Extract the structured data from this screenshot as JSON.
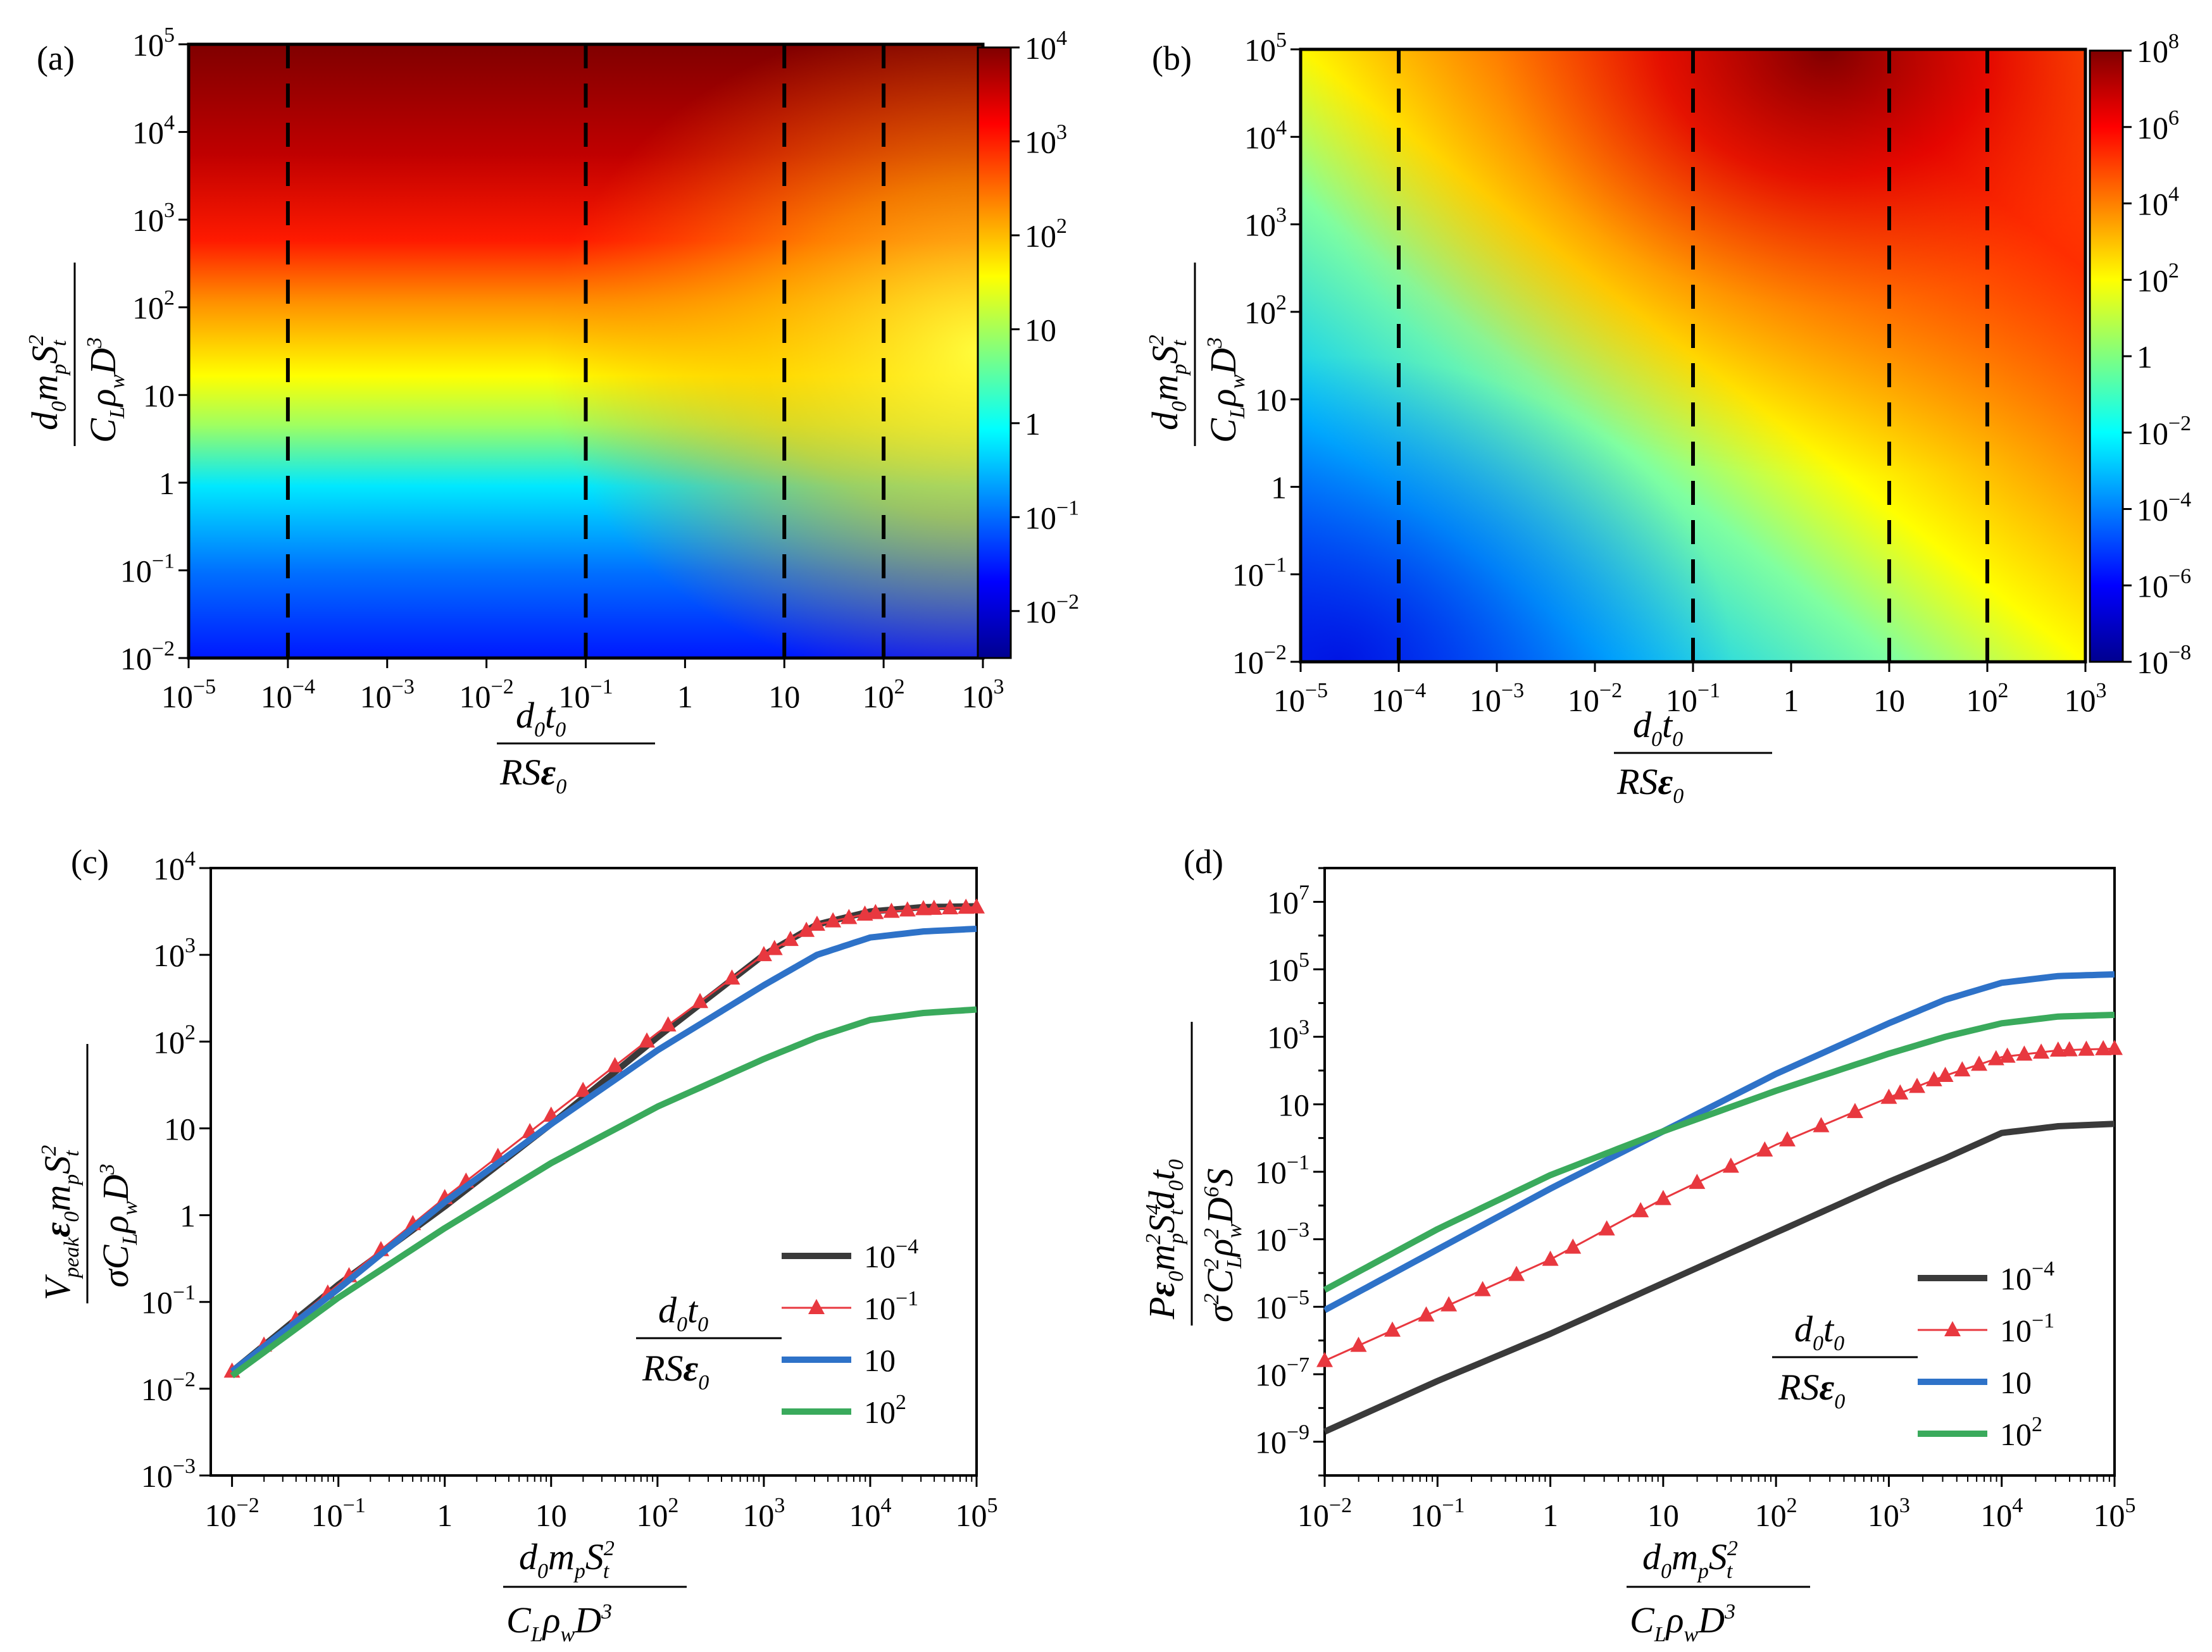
{
  "chart_data": [
    {
      "panel": "(a)",
      "type": "heatmap",
      "xlabel": "d0t0 / RSε0",
      "ylabel": "d0 mp St^2 / CL ρw D^3",
      "x_log_range": [
        -5,
        3
      ],
      "y_log_range": [
        -2,
        5
      ],
      "colorbar_log_range": [
        -2.5,
        4
      ],
      "colorbar_ticks": [
        "10^-2",
        "10^-1",
        "1",
        "10",
        "10^2",
        "10^3",
        "10^4"
      ],
      "dashed_lines_x": [
        "10^-4",
        "10^-1",
        "10",
        "10^2"
      ],
      "colormap": "jet"
    },
    {
      "panel": "(b)",
      "type": "heatmap",
      "xlabel": "d0t0 / RSε0",
      "ylabel": "d0 mp St^2 / CL ρw D^3",
      "x_log_range": [
        -5,
        3
      ],
      "y_log_range": [
        -2,
        5
      ],
      "colorbar_log_range": [
        -8,
        8
      ],
      "colorbar_ticks": [
        "10^-8",
        "10^-6",
        "10^-4",
        "10^-2",
        "1",
        "10^2",
        "10^4",
        "10^6",
        "10^8"
      ],
      "dashed_lines_x": [
        "10^-4",
        "10^-1",
        "10",
        "10^2"
      ],
      "colormap": "jet"
    },
    {
      "panel": "(c)",
      "type": "line",
      "xlabel": "d0 mp St^2 / CL ρw D^3",
      "ylabel": "Vpeak ε0 mp St^2 / σ CL ρw D^3",
      "x_log_range": [
        -2.2,
        5
      ],
      "y_log_range": [
        -3,
        4
      ],
      "legend_title": "d0t0 / RSε0",
      "legend_position": "bottom-right",
      "series": [
        {
          "name": "10^-4",
          "color": "#3a3a3a",
          "log_x": [
            -2,
            -1,
            0,
            1,
            2,
            3,
            3.5,
            4,
            4.5,
            5
          ],
          "log_y": [
            -1.8,
            -0.8,
            0.1,
            1.05,
            2.05,
            3.0,
            3.35,
            3.5,
            3.55,
            3.56
          ]
        },
        {
          "name": "10^-1",
          "color": "#e8383f",
          "marker": "triangle",
          "log_x": [
            -2,
            -1,
            0,
            1,
            2,
            3,
            3.5,
            4,
            4.5,
            5
          ],
          "log_y": [
            -1.8,
            -0.8,
            0.2,
            1.15,
            2.1,
            3.0,
            3.35,
            3.48,
            3.53,
            3.55
          ]
        },
        {
          "name": "10",
          "color": "#2e72c8",
          "log_x": [
            -2,
            -1,
            0,
            1,
            2,
            3,
            3.5,
            4,
            4.5,
            5
          ],
          "log_y": [
            -1.8,
            -0.85,
            0.15,
            1.05,
            1.9,
            2.65,
            3.0,
            3.2,
            3.27,
            3.3
          ]
        },
        {
          "name": "10^2",
          "color": "#3aaa5c",
          "log_x": [
            -2,
            -1,
            0,
            1,
            2,
            3,
            3.5,
            4,
            4.5,
            5
          ],
          "log_y": [
            -1.85,
            -0.95,
            -0.15,
            0.6,
            1.25,
            1.8,
            2.05,
            2.25,
            2.33,
            2.37
          ]
        }
      ]
    },
    {
      "panel": "(d)",
      "type": "line",
      "xlabel": "d0 mp St^2 / CL ρw D^3",
      "ylabel": "P ε0 mp^2 St^4 d0 t0 / σ^2 CL^2 ρw^2 D^6 S",
      "x_log_range": [
        -2,
        5
      ],
      "y_log_range": [
        -10,
        8
      ],
      "legend_title": "d0t0 / RSε0",
      "legend_position": "bottom-right",
      "series": [
        {
          "name": "10^-4",
          "color": "#3a3a3a",
          "log_x": [
            -2,
            -1,
            0,
            1,
            2,
            3,
            3.5,
            4,
            4.5,
            5
          ],
          "log_y": [
            -8.7,
            -7.2,
            -5.8,
            -4.3,
            -2.8,
            -1.3,
            -0.6,
            0.15,
            0.35,
            0.42
          ]
        },
        {
          "name": "10^-1",
          "color": "#e8383f",
          "marker": "triangle",
          "log_x": [
            -2,
            -1,
            0,
            1,
            2,
            3,
            3.5,
            4,
            4.5,
            5
          ],
          "log_y": [
            -6.6,
            -5.1,
            -3.6,
            -1.8,
            -0.2,
            1.2,
            1.85,
            2.4,
            2.6,
            2.65
          ]
        },
        {
          "name": "10",
          "color": "#2e72c8",
          "log_x": [
            -2,
            -1,
            0,
            1,
            2,
            3,
            3.5,
            4,
            4.5,
            5
          ],
          "log_y": [
            -5.1,
            -3.3,
            -1.5,
            0.2,
            1.9,
            3.4,
            4.1,
            4.6,
            4.8,
            4.85
          ]
        },
        {
          "name": "10^2",
          "color": "#3aaa5c",
          "log_x": [
            -2,
            -1,
            0,
            1,
            2,
            3,
            3.5,
            4,
            4.5,
            5
          ],
          "log_y": [
            -4.5,
            -2.7,
            -1.1,
            0.2,
            1.4,
            2.5,
            3.0,
            3.4,
            3.6,
            3.65
          ]
        }
      ]
    }
  ],
  "labels": {
    "a": "(a)",
    "b": "(b)",
    "c": "(c)",
    "d": "(d)"
  },
  "legend": {
    "items": [
      "10",
      "10",
      "10",
      "10"
    ],
    "exps": [
      "-4",
      "-1",
      "",
      "2"
    ]
  },
  "colors": {
    "black": "#3a3a3a",
    "red": "#e8383f",
    "blue": "#2e72c8",
    "green": "#3aaa5c"
  }
}
